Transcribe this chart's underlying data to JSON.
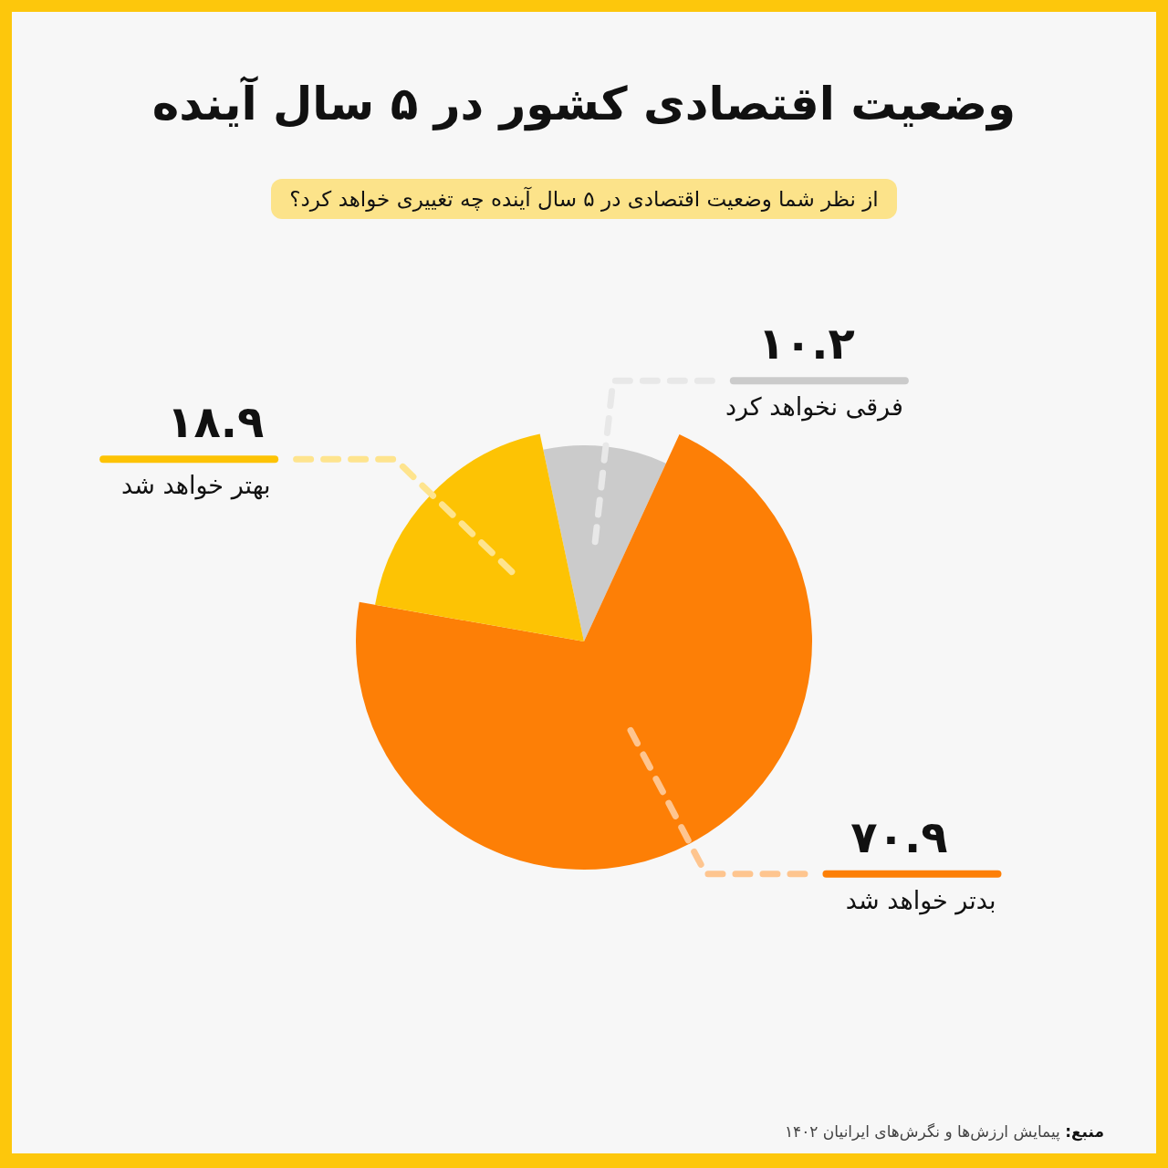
{
  "chart_data": {
    "type": "pie",
    "title": "وضعیت اقتصادی کشور در ۵ سال آینده",
    "subtitle": "از نظر شما وضعیت اقتصادی در ۵ سال آینده چه تغییری خواهد کرد؟",
    "categories": [
      "فرقی نخواهد کرد",
      "بدتر خواهد شد",
      "بهتر خواهد شد"
    ],
    "values": [
      10.2,
      70.9,
      18.9
    ],
    "colors": [
      "#cbcbcb",
      "#fd7f06",
      "#fdc304"
    ],
    "value_labels": [
      "۱۰.۲",
      "۷۰.۹",
      "۱۸.۹"
    ],
    "legend": false,
    "annotations": [
      "منبع: پیمایش ارزش‌ها و نگرش‌های ایرانیان ۱۴۰۲"
    ]
  }
}
